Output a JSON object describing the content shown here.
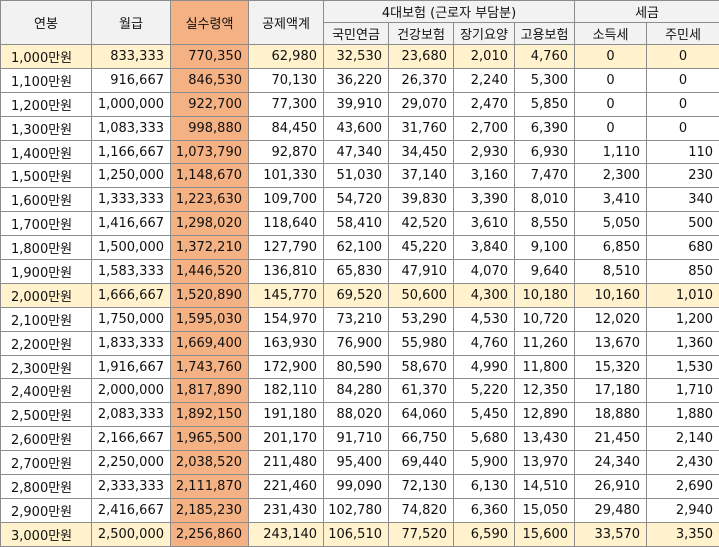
{
  "header": {
    "annual_salary": "연봉",
    "monthly_pay": "월급",
    "net_pay": "실수령액",
    "total_deduction": "공제액계",
    "insurance_group": "4대보험 (근로자 부담분)",
    "national_pension": "국민연금",
    "health_insurance": "건강보험",
    "long_term_care": "장기요양",
    "employment_insurance": "고용보험",
    "tax_group": "세금",
    "income_tax": "소득세",
    "resident_tax": "주민세"
  },
  "colors": {
    "net_pay_column": "#f4b183",
    "highlight_row": "#fff2cc",
    "header_bg": "#f2f2f2"
  },
  "rows": [
    {
      "salary": "1,000만원",
      "monthly": "833,333",
      "net": "770,350",
      "deduction": "62,980",
      "pension": "32,530",
      "health": "23,680",
      "care": "2,010",
      "employment": "4,760",
      "income_tax": "0",
      "resident_tax": "0",
      "highlight": true
    },
    {
      "salary": "1,100만원",
      "monthly": "916,667",
      "net": "846,530",
      "deduction": "70,130",
      "pension": "36,220",
      "health": "26,370",
      "care": "2,240",
      "employment": "5,300",
      "income_tax": "0",
      "resident_tax": "0",
      "highlight": false
    },
    {
      "salary": "1,200만원",
      "monthly": "1,000,000",
      "net": "922,700",
      "deduction": "77,300",
      "pension": "39,910",
      "health": "29,070",
      "care": "2,470",
      "employment": "5,850",
      "income_tax": "0",
      "resident_tax": "0",
      "highlight": false
    },
    {
      "salary": "1,300만원",
      "monthly": "1,083,333",
      "net": "998,880",
      "deduction": "84,450",
      "pension": "43,600",
      "health": "31,760",
      "care": "2,700",
      "employment": "6,390",
      "income_tax": "0",
      "resident_tax": "0",
      "highlight": false
    },
    {
      "salary": "1,400만원",
      "monthly": "1,166,667",
      "net": "1,073,790",
      "deduction": "92,870",
      "pension": "47,340",
      "health": "34,450",
      "care": "2,930",
      "employment": "6,930",
      "income_tax": "1,110",
      "resident_tax": "110",
      "highlight": false
    },
    {
      "salary": "1,500만원",
      "monthly": "1,250,000",
      "net": "1,148,670",
      "deduction": "101,330",
      "pension": "51,030",
      "health": "37,140",
      "care": "3,160",
      "employment": "7,470",
      "income_tax": "2,300",
      "resident_tax": "230",
      "highlight": false
    },
    {
      "salary": "1,600만원",
      "monthly": "1,333,333",
      "net": "1,223,630",
      "deduction": "109,700",
      "pension": "54,720",
      "health": "39,830",
      "care": "3,390",
      "employment": "8,010",
      "income_tax": "3,410",
      "resident_tax": "340",
      "highlight": false
    },
    {
      "salary": "1,700만원",
      "monthly": "1,416,667",
      "net": "1,298,020",
      "deduction": "118,640",
      "pension": "58,410",
      "health": "42,520",
      "care": "3,610",
      "employment": "8,550",
      "income_tax": "5,050",
      "resident_tax": "500",
      "highlight": false
    },
    {
      "salary": "1,800만원",
      "monthly": "1,500,000",
      "net": "1,372,210",
      "deduction": "127,790",
      "pension": "62,100",
      "health": "45,220",
      "care": "3,840",
      "employment": "9,100",
      "income_tax": "6,850",
      "resident_tax": "680",
      "highlight": false
    },
    {
      "salary": "1,900만원",
      "monthly": "1,583,333",
      "net": "1,446,520",
      "deduction": "136,810",
      "pension": "65,830",
      "health": "47,910",
      "care": "4,070",
      "employment": "9,640",
      "income_tax": "8,510",
      "resident_tax": "850",
      "highlight": false
    },
    {
      "salary": "2,000만원",
      "monthly": "1,666,667",
      "net": "1,520,890",
      "deduction": "145,770",
      "pension": "69,520",
      "health": "50,600",
      "care": "4,300",
      "employment": "10,180",
      "income_tax": "10,160",
      "resident_tax": "1,010",
      "highlight": true
    },
    {
      "salary": "2,100만원",
      "monthly": "1,750,000",
      "net": "1,595,030",
      "deduction": "154,970",
      "pension": "73,210",
      "health": "53,290",
      "care": "4,530",
      "employment": "10,720",
      "income_tax": "12,020",
      "resident_tax": "1,200",
      "highlight": false
    },
    {
      "salary": "2,200만원",
      "monthly": "1,833,333",
      "net": "1,669,400",
      "deduction": "163,930",
      "pension": "76,900",
      "health": "55,980",
      "care": "4,760",
      "employment": "11,260",
      "income_tax": "13,670",
      "resident_tax": "1,360",
      "highlight": false
    },
    {
      "salary": "2,300만원",
      "monthly": "1,916,667",
      "net": "1,743,760",
      "deduction": "172,900",
      "pension": "80,590",
      "health": "58,670",
      "care": "4,990",
      "employment": "11,800",
      "income_tax": "15,320",
      "resident_tax": "1,530",
      "highlight": false
    },
    {
      "salary": "2,400만원",
      "monthly": "2,000,000",
      "net": "1,817,890",
      "deduction": "182,110",
      "pension": "84,280",
      "health": "61,370",
      "care": "5,220",
      "employment": "12,350",
      "income_tax": "17,180",
      "resident_tax": "1,710",
      "highlight": false
    },
    {
      "salary": "2,500만원",
      "monthly": "2,083,333",
      "net": "1,892,150",
      "deduction": "191,180",
      "pension": "88,020",
      "health": "64,060",
      "care": "5,450",
      "employment": "12,890",
      "income_tax": "18,880",
      "resident_tax": "1,880",
      "highlight": false
    },
    {
      "salary": "2,600만원",
      "monthly": "2,166,667",
      "net": "1,965,500",
      "deduction": "201,170",
      "pension": "91,710",
      "health": "66,750",
      "care": "5,680",
      "employment": "13,430",
      "income_tax": "21,450",
      "resident_tax": "2,140",
      "highlight": false
    },
    {
      "salary": "2,700만원",
      "monthly": "2,250,000",
      "net": "2,038,520",
      "deduction": "211,480",
      "pension": "95,400",
      "health": "69,440",
      "care": "5,900",
      "employment": "13,970",
      "income_tax": "24,340",
      "resident_tax": "2,430",
      "highlight": false
    },
    {
      "salary": "2,800만원",
      "monthly": "2,333,333",
      "net": "2,111,870",
      "deduction": "221,460",
      "pension": "99,090",
      "health": "72,130",
      "care": "6,130",
      "employment": "14,510",
      "income_tax": "26,910",
      "resident_tax": "2,690",
      "highlight": false
    },
    {
      "salary": "2,900만원",
      "monthly": "2,416,667",
      "net": "2,185,230",
      "deduction": "231,430",
      "pension": "102,780",
      "health": "74,820",
      "care": "6,360",
      "employment": "15,050",
      "income_tax": "29,480",
      "resident_tax": "2,940",
      "highlight": false
    },
    {
      "salary": "3,000만원",
      "monthly": "2,500,000",
      "net": "2,256,860",
      "deduction": "243,140",
      "pension": "106,510",
      "health": "77,520",
      "care": "6,590",
      "employment": "15,600",
      "income_tax": "33,570",
      "resident_tax": "3,350",
      "highlight": true
    }
  ]
}
